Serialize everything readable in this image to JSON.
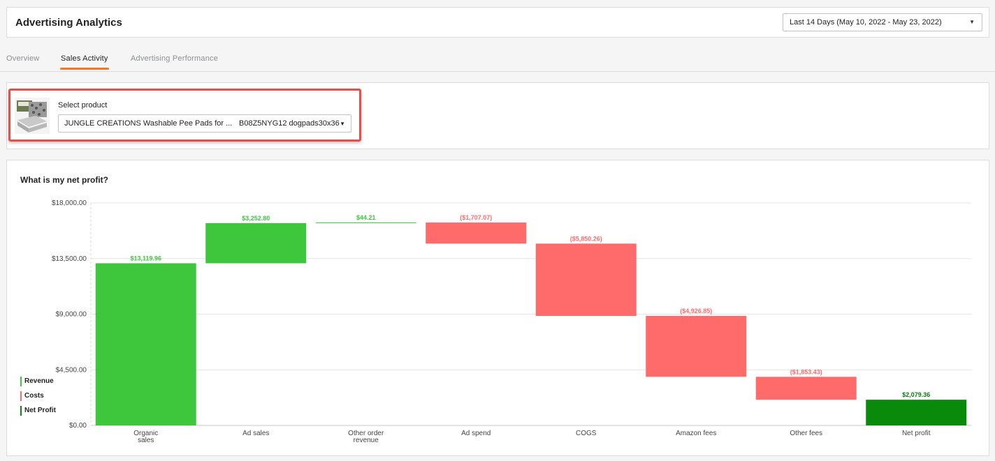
{
  "header": {
    "title": "Advertising Analytics",
    "date_range": "Last 14 Days (May 10, 2022 - May 23, 2022)"
  },
  "tabs": [
    {
      "label": "Overview",
      "active": false
    },
    {
      "label": "Sales Activity",
      "active": true
    },
    {
      "label": "Advertising Performance",
      "active": false
    }
  ],
  "product_selector": {
    "label": "Select product",
    "product_name": "JUNGLE CREATIONS Washable Pee Pads for ...",
    "product_sku": "B08Z5NYG12 dogpads30x36"
  },
  "colors": {
    "revenue": "#3ec63c",
    "costs": "#ff6b6b",
    "net_profit": "#0a8a0a",
    "accent": "#f07a22"
  },
  "chart_data": {
    "type": "bar",
    "subtype": "waterfall",
    "title": "What is my net profit?",
    "categories": [
      "Organic\nsales",
      "Ad sales",
      "Other order\nrevenue",
      "Ad spend",
      "COGS",
      "Amazon fees",
      "Other fees",
      "Net profit"
    ],
    "values": [
      13119.96,
      3252.8,
      44.21,
      -1707.07,
      -5850.26,
      -4926.85,
      -1853.43,
      2079.36
    ],
    "value_labels": [
      "$13,119.96",
      "$3,252.80",
      "$44.21",
      "($1,707.07)",
      "($5,850.26)",
      "($4,926.85)",
      "($1,853.43)",
      "$2,079.36"
    ],
    "kinds": [
      "revenue",
      "revenue",
      "revenue",
      "cost",
      "cost",
      "cost",
      "cost",
      "net"
    ],
    "ylim": [
      0,
      18000
    ],
    "yticks": [
      0,
      4500,
      9000,
      13500,
      18000
    ],
    "ytick_labels": [
      "$0.00",
      "$4,500.00",
      "$9,000.00",
      "$13,500.00",
      "$18,000.00"
    ],
    "legend": [
      {
        "label": "Revenue",
        "color": "#3ec63c"
      },
      {
        "label": "Costs",
        "color": "#ff6b6b"
      },
      {
        "label": "Net Profit",
        "color": "#0a8a0a"
      }
    ],
    "legend_position": "bottom-left",
    "grid": true
  }
}
